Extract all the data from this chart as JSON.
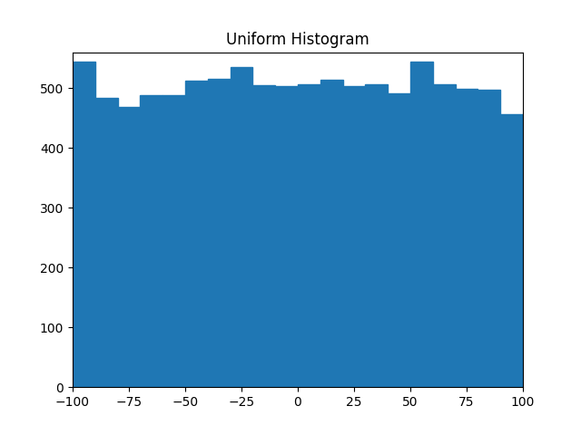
{
  "title": "Uniform Histogram",
  "bar_color": "#1f77b4",
  "bar_heights": [
    545,
    484,
    468,
    488,
    488,
    513,
    515,
    535,
    505,
    503,
    506,
    514,
    504,
    506,
    491,
    545,
    507,
    499,
    498,
    457
  ],
  "bin_edges": [
    -100,
    -90,
    -80,
    -70,
    -60,
    -50,
    -40,
    -30,
    -20,
    -10,
    0,
    10,
    20,
    30,
    40,
    50,
    60,
    70,
    80,
    90,
    100
  ],
  "xlim": [
    -100,
    100
  ],
  "ylim": [
    0,
    560
  ],
  "xticks": [
    -100,
    -75,
    -50,
    -25,
    0,
    25,
    50,
    75,
    100
  ],
  "yticks": [
    0,
    100,
    200,
    300,
    400,
    500
  ]
}
